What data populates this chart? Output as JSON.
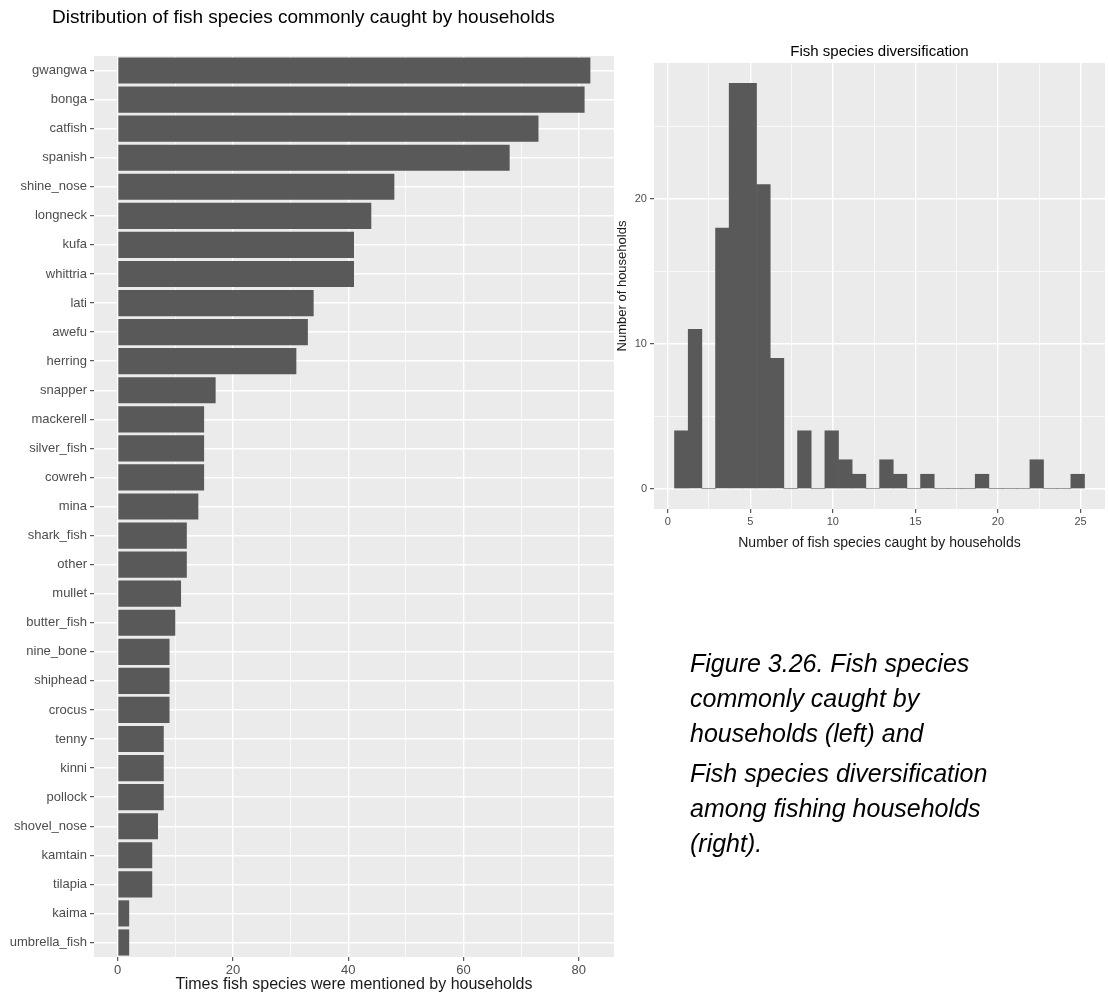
{
  "chart_data": [
    {
      "type": "bar",
      "orientation": "horizontal",
      "title": "Distribution of fish species commonly caught by households",
      "xlabel": "Times fish species were mentioned by households",
      "categories": [
        "gwangwa",
        "bonga",
        "catfish",
        "spanish",
        "shine_nose",
        "longneck",
        "kufa",
        "whittria",
        "lati",
        "awefu",
        "herring",
        "snapper",
        "mackerell",
        "silver_fish",
        "cowreh",
        "mina",
        "shark_fish",
        "other",
        "mullet",
        "butter_fish",
        "nine_bone",
        "shiphead",
        "crocus",
        "tenny",
        "kinni",
        "pollock",
        "shovel_nose",
        "kamtain",
        "tilapia",
        "kaima",
        "umbrella_fish"
      ],
      "values": [
        82,
        81,
        73,
        68,
        48,
        44,
        41,
        41,
        34,
        33,
        31,
        17,
        15,
        15,
        15,
        14,
        12,
        12,
        11,
        10,
        9,
        9,
        9,
        8,
        8,
        8,
        7,
        6,
        6,
        2,
        2
      ],
      "color": "#595959",
      "xlim": [
        -4.1,
        86.1
      ],
      "xticks": [
        0,
        {
          "value": 10,
          "label": null
        },
        20,
        {
          "value": 30,
          "label": null
        },
        40,
        {
          "value": 50,
          "label": null
        },
        60,
        {
          "value": 70,
          "label": null
        },
        80
      ],
      "grid": true
    },
    {
      "type": "histogram",
      "title": "Fish species diversification",
      "xlabel": "Number of fish species caught by households",
      "ylabel": "Number of households",
      "bins": [
        0.41,
        1.24,
        2.07,
        2.9,
        3.72,
        4.55,
        5.38,
        6.21,
        7.03,
        7.86,
        8.69,
        9.52,
        10.34,
        11.17,
        12,
        12.83,
        13.66,
        14.48,
        15.31,
        16.14,
        16.97,
        17.79,
        18.62,
        19.45,
        20.28,
        21.1,
        21.93,
        22.76,
        23.59,
        24.41,
        25.24
      ],
      "values": [
        4,
        11,
        0,
        18,
        28,
        28,
        21,
        9,
        0,
        4,
        0,
        4,
        2,
        1,
        0,
        2,
        1,
        0,
        1,
        0,
        0,
        0,
        1,
        0,
        0,
        0,
        2,
        0,
        0,
        1
      ],
      "color": "#595959",
      "xlim": [
        -0.83,
        26.48
      ],
      "ylim": [
        -1.4,
        29.4
      ],
      "xticks": [
        0,
        {
          "value": 2.5,
          "label": null
        },
        5,
        {
          "value": 7.5,
          "label": null
        },
        10,
        {
          "value": 12.5,
          "label": null
        },
        15,
        {
          "value": 17.5,
          "label": null
        },
        20,
        {
          "value": 22.5,
          "label": null
        },
        25
      ],
      "yticks": [
        0,
        {
          "value": 5,
          "label": null
        },
        10,
        {
          "value": 15,
          "label": null
        },
        20,
        {
          "value": 25,
          "label": null
        }
      ],
      "grid": true,
      "annotations": [
        "Figure 3.26. Fish species commonly caught by households (left) and",
        "Fish species diversification among fishing households (right)."
      ]
    }
  ]
}
